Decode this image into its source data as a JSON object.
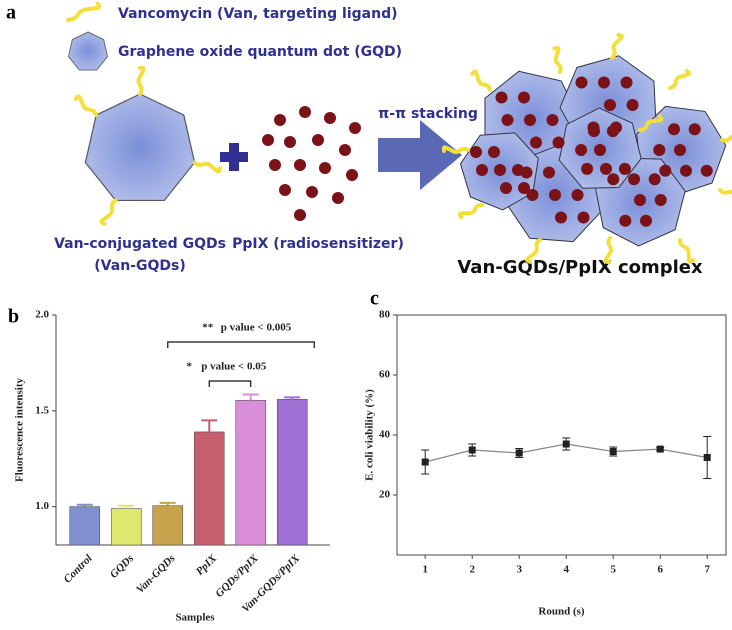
{
  "diagram": {
    "panel_label": "a",
    "legend": [
      "Vancomycin (Van, targeting ligand)",
      "Graphene oxide quantum dot (GQD)"
    ],
    "van_gqd_label": [
      "Van-conjugated GQDs",
      "(Van-GQDs)"
    ],
    "ppix_label": "PpIX (radiosensitizer)",
    "arrow_label": "π-π stacking",
    "complex_label": "Van-GQDs/PpIX complex"
  },
  "chart_data": [
    {
      "type": "bar",
      "panel_label": "b",
      "xlabel": "Samples",
      "ylabel": "Fluorescence intensity",
      "categories": [
        "Control",
        "GQDs",
        "Van-GQDs",
        "PpIX",
        "GQDs/PpIX",
        "Van-GQDs/PpIX"
      ],
      "values": [
        1.0,
        0.99,
        1.005,
        1.39,
        1.555,
        1.56
      ],
      "errors": [
        0.01,
        0.015,
        0.015,
        0.06,
        0.03,
        0.01
      ],
      "colors": [
        "#7f8fd0",
        "#dfe86e",
        "#c9a24e",
        "#c55f6e",
        "#d98fd8",
        "#a070d4"
      ],
      "ylim": [
        0.8,
        2.0
      ],
      "yticks": [
        {
          "value": 1.0,
          "label": "1.0"
        },
        {
          "value": 1.5,
          "label": "1.5"
        },
        {
          "value": 2.0,
          "label": "2.0"
        }
      ],
      "annotations": [
        {
          "stars": "**",
          "text": "p value < 0.005"
        },
        {
          "stars": "*",
          "text": "p value < 0.05"
        }
      ]
    },
    {
      "type": "line",
      "panel_label": "c",
      "xlabel": "Round (s)",
      "ylabel": "E. coli viability (%)",
      "x": [
        1,
        2,
        3,
        4,
        5,
        6,
        7
      ],
      "values": [
        31,
        35,
        34,
        37,
        34.5,
        35.3,
        32.5
      ],
      "errors": [
        4,
        2,
        1.5,
        2,
        1.5,
        0.5,
        7
      ],
      "color": "#222222",
      "xlim": [
        0.4,
        7.4
      ],
      "xticks": [
        1,
        2,
        3,
        4,
        5,
        6,
        7
      ],
      "ylim": [
        0,
        80
      ],
      "yticks": [
        20,
        40,
        60,
        80
      ]
    }
  ]
}
